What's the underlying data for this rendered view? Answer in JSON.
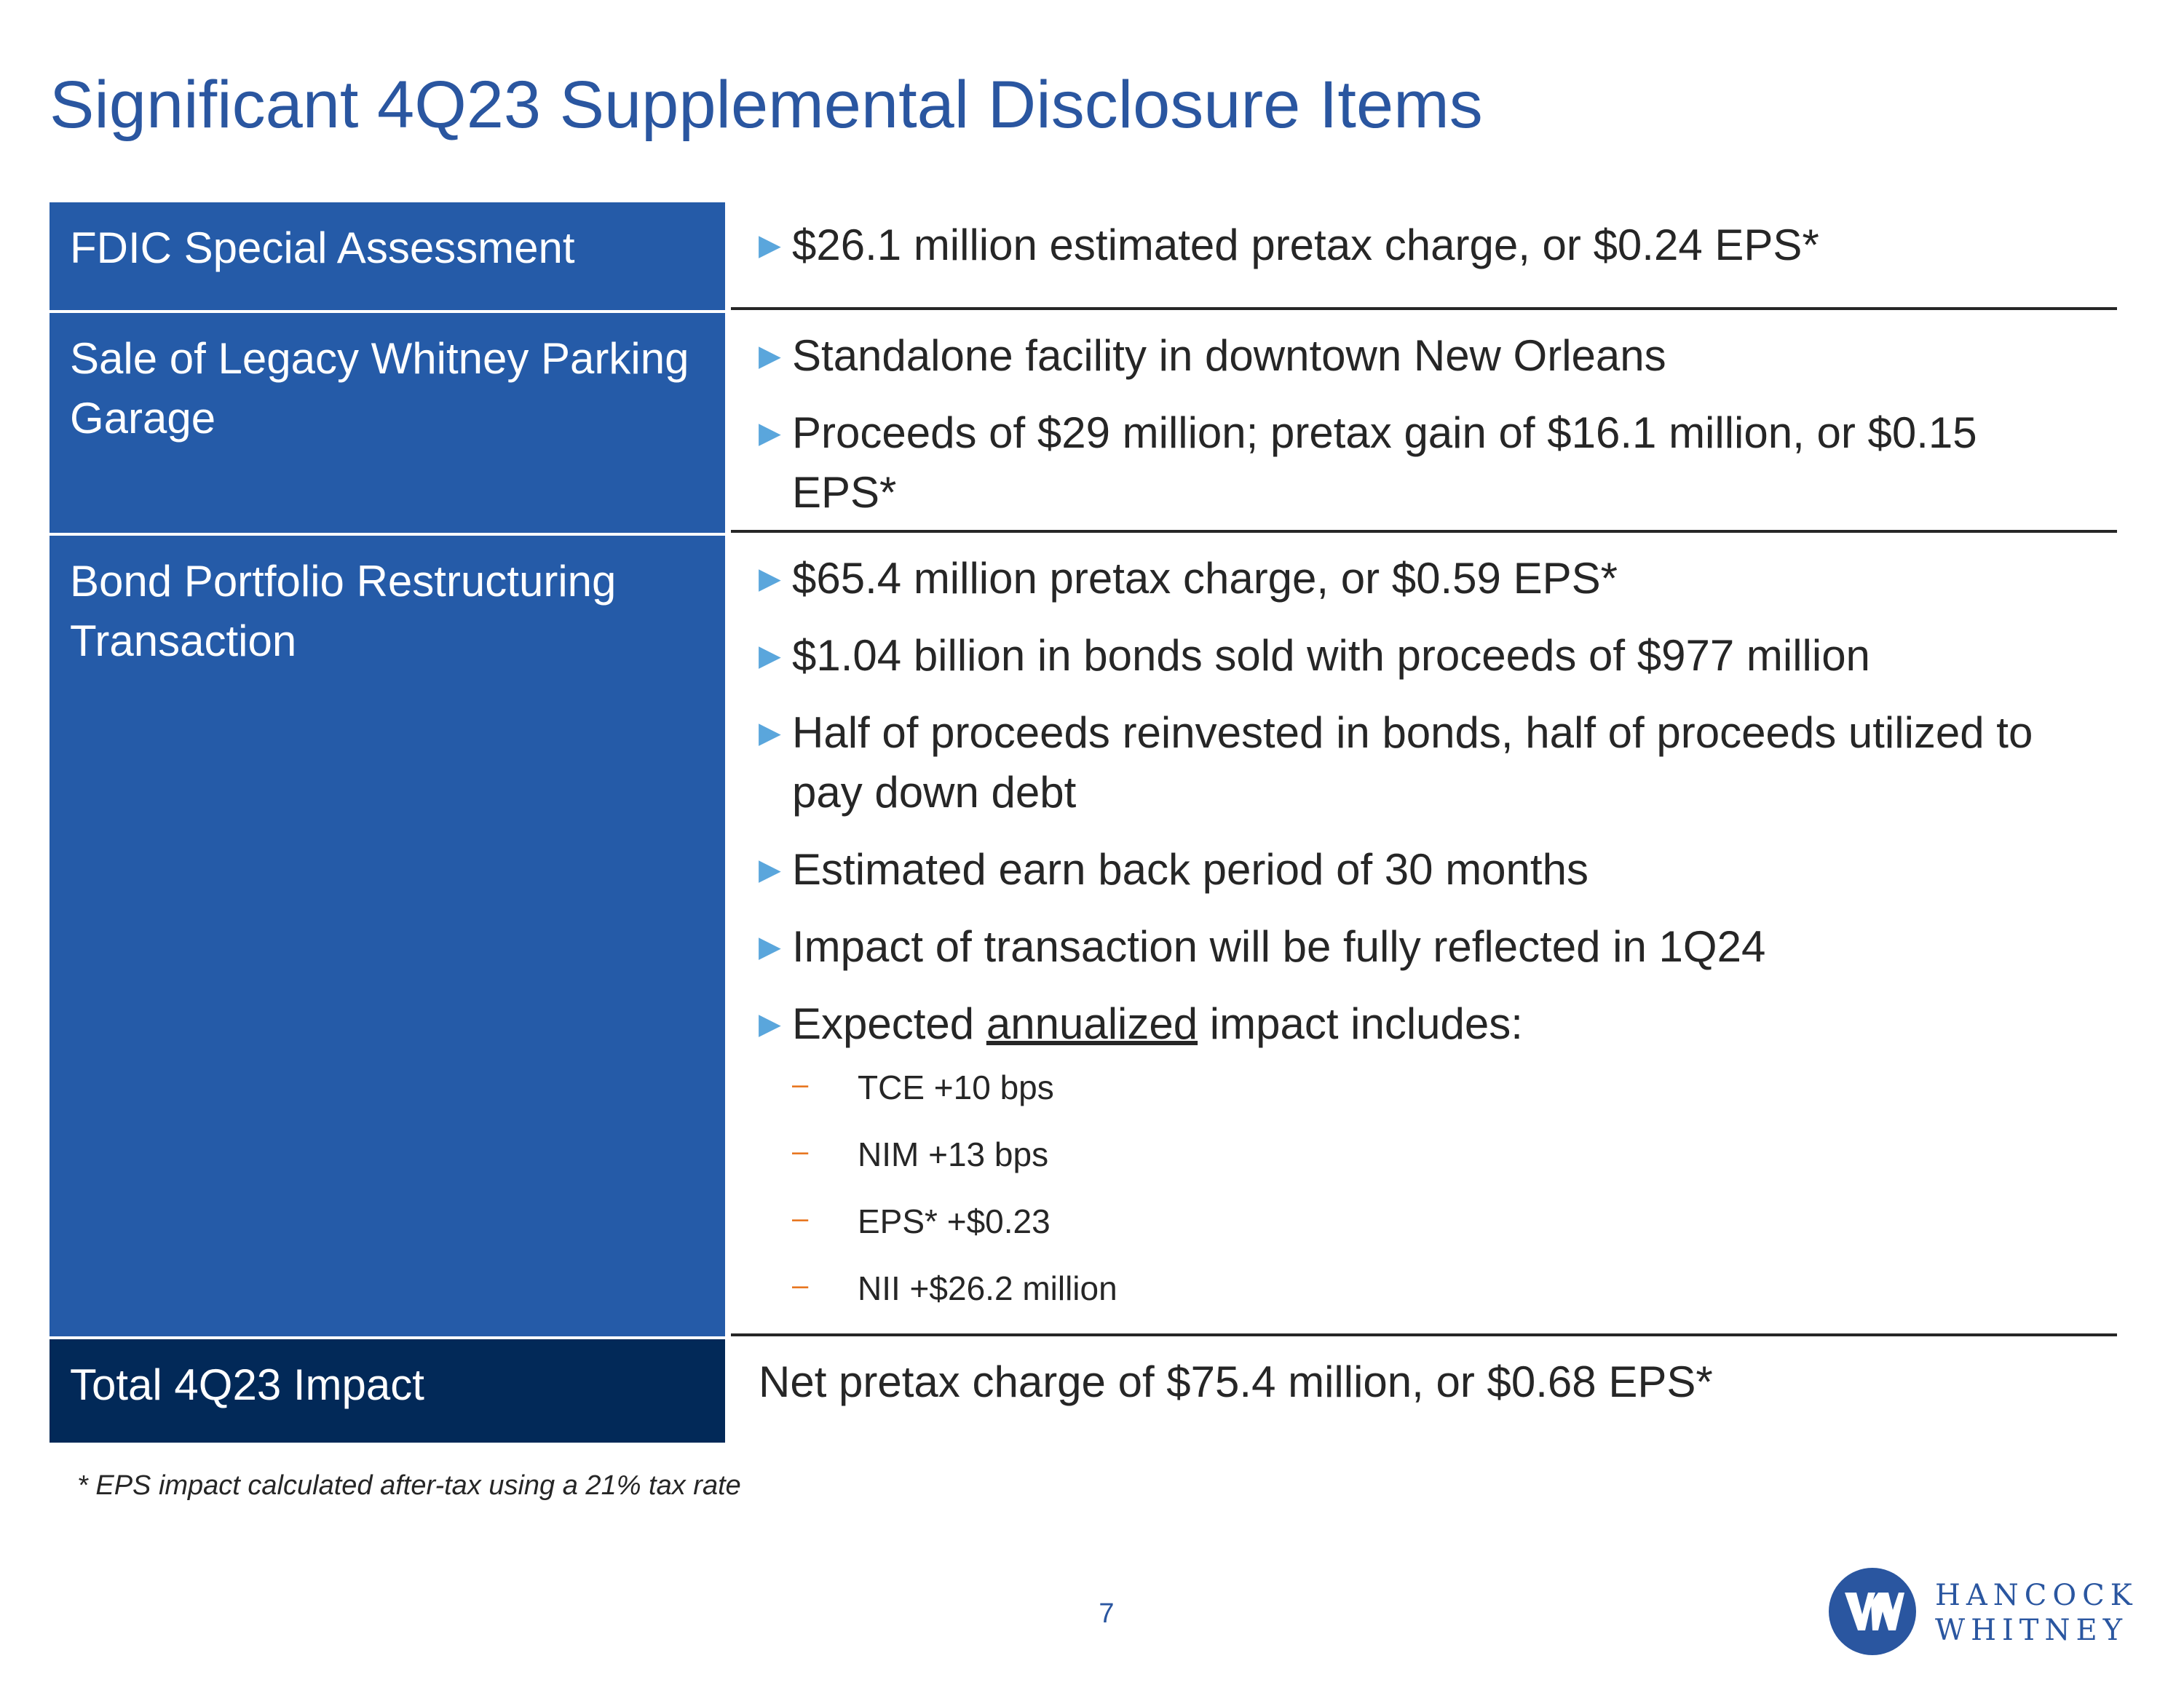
{
  "title": "Significant 4Q23 Supplemental Disclosure Items",
  "rows": [
    {
      "label": "FDIC Special Assessment",
      "bullets": [
        "$26.1 million estimated pretax charge, or $0.24 EPS*"
      ]
    },
    {
      "label": "Sale of Legacy Whitney Parking Garage",
      "bullets": [
        "Standalone facility in downtown New Orleans",
        "Proceeds of $29 million; pretax gain of $16.1 million, or $0.15 EPS*"
      ]
    },
    {
      "label": "Bond Portfolio Restructuring Transaction",
      "bullets": [
        "$65.4 million pretax charge, or $0.59 EPS*",
        "$1.04 billion in bonds sold with proceeds of $977 million",
        "Half of proceeds reinvested in bonds, half of proceeds utilized to pay down debt",
        "Estimated earn back period of 30 months",
        "Impact of transaction will be fully reflected in 1Q24"
      ],
      "annualized_bullet": {
        "prefix": "Expected ",
        "underlined": "annualized",
        "suffix": " impact includes:"
      },
      "sub_items": [
        "TCE +10 bps",
        "NIM +13 bps",
        "EPS* +$0.23",
        "NII +$26.2 million"
      ]
    },
    {
      "label": "Total 4Q23 Impact",
      "text": "Net pretax charge of $75.4 million, or $0.68 EPS*"
    }
  ],
  "footnote": "* EPS impact calculated after-tax using a 21% tax rate",
  "page_number": "7",
  "logo": {
    "line1": "HANCOCK",
    "line2": "WHITNEY",
    "icon": "hancock-whitney-logo-mark"
  },
  "colors": {
    "title": "#2a56a0",
    "label_bg": "#255ba8",
    "total_bg": "#022958",
    "bullet_arrow": "#5aa6dc",
    "sub_dash": "#e87722"
  }
}
